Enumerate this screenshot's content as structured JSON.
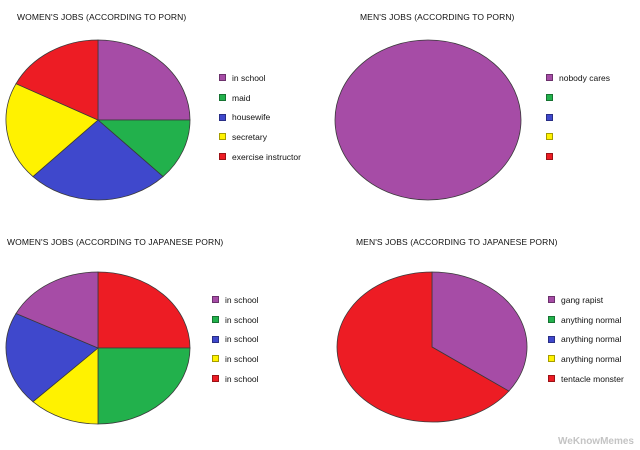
{
  "chart_data": [
    {
      "type": "pie",
      "title": "WOMEN'S JOBS (ACCORDING TO PORN)",
      "categories": [
        "in school",
        "maid",
        "housewife",
        "secretary",
        "exercise instructor"
      ],
      "values": [
        25,
        12.5,
        25,
        20,
        17.5
      ],
      "colors": [
        "#a64ca6",
        "#22b14c",
        "#3f48cc",
        "#fff200",
        "#ed1c24"
      ],
      "legend_placement": "right"
    },
    {
      "type": "pie",
      "title": "MEN'S JOBS (ACCORDING TO PORN)",
      "categories": [
        "nobody cares",
        "",
        "",
        "",
        ""
      ],
      "values": [
        100,
        0,
        0,
        0,
        0
      ],
      "colors": [
        "#a64ca6",
        "#22b14c",
        "#3f48cc",
        "#fff200",
        "#ed1c24"
      ],
      "legend_placement": "right"
    },
    {
      "type": "pie",
      "title": "WOMEN'S JOBS (ACCORDING TO JAPANESE PORN)",
      "categories": [
        "in school",
        "in school",
        "in school",
        "in school",
        "in school"
      ],
      "values": [
        25,
        25,
        12.5,
        20,
        17.5
      ],
      "colors": [
        "#ed1c24",
        "#22b14c",
        "#fff200",
        "#3f48cc",
        "#a64ca6"
      ],
      "legend_colors": [
        "#a64ca6",
        "#22b14c",
        "#3f48cc",
        "#fff200",
        "#ed1c24"
      ],
      "legend_placement": "right"
    },
    {
      "type": "pie",
      "title": "MEN'S JOBS (ACCORDING TO JAPANESE PORN)",
      "categories": [
        "gang rapist",
        "anything normal",
        "anything normal",
        "anything normal",
        "tentacle monster"
      ],
      "values": [
        35,
        0,
        0,
        0,
        65
      ],
      "colors": [
        "#a64ca6",
        "#22b14c",
        "#3f48cc",
        "#fff200",
        "#ed1c24"
      ],
      "legend_placement": "right"
    }
  ],
  "watermark": "WeKnowMemes"
}
